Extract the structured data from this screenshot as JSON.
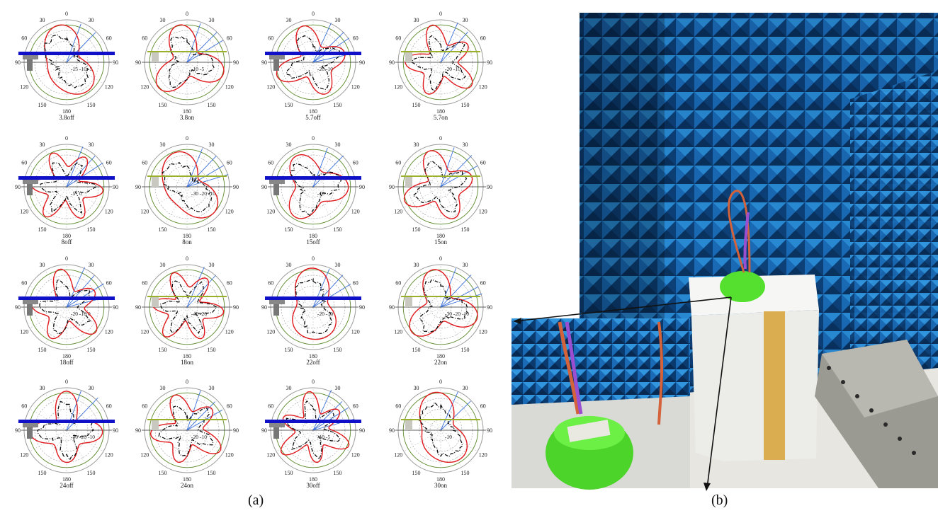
{
  "figure": {
    "caption_a": "(a)",
    "caption_b": "(b)"
  },
  "chart_data": {
    "type": "polar",
    "grid": true,
    "angle_ticks": [
      "0",
      "30",
      "60",
      "90",
      "120",
      "150",
      "180",
      "150",
      "120",
      "90",
      "60",
      "30"
    ],
    "panels": [
      {
        "label": "3.8off",
        "radial_ticks": [
          "-15",
          "-10",
          "-5"
        ],
        "measured_on": false
      },
      {
        "label": "3.8on",
        "radial_ticks": [
          "-10",
          "-5"
        ],
        "measured_on": true
      },
      {
        "label": "5.7off",
        "radial_ticks": [
          "-20",
          "-10"
        ],
        "measured_on": false
      },
      {
        "label": "5.7on",
        "radial_ticks": [
          "-20",
          "-10"
        ],
        "measured_on": true
      },
      {
        "label": "8off",
        "radial_ticks": [
          "-5",
          "0"
        ],
        "measured_on": false
      },
      {
        "label": "8on",
        "radial_ticks": [
          "-30",
          "-20",
          "-10"
        ],
        "measured_on": true
      },
      {
        "label": "15off",
        "radial_ticks": [
          "-10"
        ],
        "measured_on": false
      },
      {
        "label": "15on",
        "radial_ticks": [],
        "measured_on": true
      },
      {
        "label": "18off",
        "radial_ticks": [
          "-20",
          "-10",
          "0"
        ],
        "measured_on": false
      },
      {
        "label": "18on",
        "radial_ticks": [
          "-40",
          "-20"
        ],
        "measured_on": true
      },
      {
        "label": "22off",
        "radial_ticks": [
          "-20",
          "-10"
        ],
        "measured_on": false
      },
      {
        "label": "22on",
        "radial_ticks": [
          "-30",
          "-20",
          "-10"
        ],
        "measured_on": true
      },
      {
        "label": "24off",
        "radial_ticks": [
          "-30",
          "-20",
          "-10"
        ],
        "measured_on": false
      },
      {
        "label": "24on",
        "radial_ticks": [
          "-20",
          "-10"
        ],
        "measured_on": true
      },
      {
        "label": "30off",
        "radial_ticks": [
          "-10",
          "-5"
        ],
        "measured_on": false
      },
      {
        "label": "30on",
        "radial_ticks": [
          "-10"
        ],
        "measured_on": true
      }
    ]
  },
  "colors": {
    "simulated": "#e0191d",
    "measured": "#111111",
    "guide_ring": "#5a8a2a",
    "beam_lines": "#3a6fd8",
    "ground_bar": "#1010c8"
  }
}
